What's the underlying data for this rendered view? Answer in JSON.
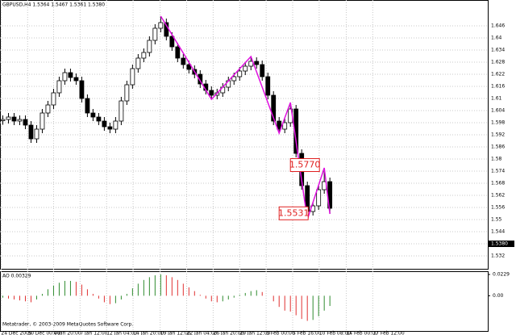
{
  "chart_data": [
    {
      "type": "candlestick",
      "title": "GBPUSD,H4 1.5364 1.5467 1.5361 1.5380",
      "up_color": "#ffffff",
      "down_color": "#000000",
      "wick_color": "#000000",
      "open": [
        1.599,
        1.5996,
        1.6008,
        1.5988,
        1.5996,
        1.5968,
        1.59,
        1.5948,
        1.6028,
        1.6068,
        1.6128,
        1.6188,
        1.6228,
        1.6204,
        1.6188,
        1.61,
        1.6028,
        1.6008,
        1.5988,
        1.596,
        1.5948,
        1.5988,
        1.6088,
        1.6168,
        1.6248,
        1.63,
        1.6328,
        1.6388,
        1.6448,
        1.6476,
        1.6408,
        1.6356,
        1.63,
        1.6268,
        1.6244,
        1.622,
        1.6172,
        1.614,
        1.6116,
        1.6128,
        1.6156,
        1.6188,
        1.6208,
        1.6236,
        1.626,
        1.6284,
        1.6268,
        1.6208,
        1.6116,
        1.5988,
        1.5948,
        1.598,
        1.6048,
        1.5828,
        1.5668,
        1.554,
        1.5568,
        1.5648,
        1.5688
      ],
      "high": [
        1.6016,
        1.6028,
        1.6028,
        1.6016,
        1.6016,
        1.5988,
        1.5968,
        1.6048,
        1.6088,
        1.6148,
        1.6208,
        1.6248,
        1.6248,
        1.6224,
        1.6208,
        1.612,
        1.6048,
        1.6028,
        1.6008,
        1.598,
        1.6008,
        1.6108,
        1.6188,
        1.6268,
        1.632,
        1.6348,
        1.6408,
        1.6468,
        1.6508,
        1.6496,
        1.6428,
        1.6376,
        1.632,
        1.6288,
        1.6264,
        1.624,
        1.6192,
        1.616,
        1.6148,
        1.6176,
        1.6208,
        1.6228,
        1.6256,
        1.628,
        1.6308,
        1.6304,
        1.6288,
        1.6228,
        1.6136,
        1.6008,
        1.6,
        1.608,
        1.6068,
        1.5848,
        1.5688,
        1.5588,
        1.5668,
        1.5756,
        1.5708
      ],
      "low": [
        1.597,
        1.5976,
        1.5968,
        1.5968,
        1.5948,
        1.588,
        1.588,
        1.5928,
        1.6008,
        1.6048,
        1.6108,
        1.6168,
        1.6184,
        1.6168,
        1.608,
        1.6008,
        1.5988,
        1.5968,
        1.594,
        1.5928,
        1.5928,
        1.5968,
        1.6068,
        1.6148,
        1.6228,
        1.628,
        1.6308,
        1.6368,
        1.6428,
        1.6388,
        1.6336,
        1.628,
        1.6248,
        1.6224,
        1.62,
        1.6152,
        1.612,
        1.6096,
        1.6096,
        1.6108,
        1.6136,
        1.6168,
        1.6188,
        1.6216,
        1.624,
        1.6248,
        1.6188,
        1.6096,
        1.5968,
        1.5928,
        1.5928,
        1.596,
        1.5808,
        1.5648,
        1.55,
        1.552,
        1.5548,
        1.5628,
        1.5528
      ],
      "close": [
        1.5996,
        1.6008,
        1.5988,
        1.5996,
        1.5968,
        1.59,
        1.5948,
        1.6028,
        1.6068,
        1.6128,
        1.6188,
        1.6228,
        1.6204,
        1.6188,
        1.61,
        1.6028,
        1.6008,
        1.5988,
        1.596,
        1.5948,
        1.5988,
        1.6088,
        1.6168,
        1.6248,
        1.63,
        1.6328,
        1.6388,
        1.6448,
        1.6476,
        1.6408,
        1.6356,
        1.63,
        1.6268,
        1.6244,
        1.622,
        1.6172,
        1.614,
        1.6116,
        1.6128,
        1.6156,
        1.6188,
        1.6208,
        1.6236,
        1.626,
        1.6284,
        1.6268,
        1.6208,
        1.6116,
        1.5988,
        1.5948,
        1.598,
        1.6048,
        1.5828,
        1.5668,
        1.554,
        1.5568,
        1.5648,
        1.5688,
        1.5556
      ],
      "zigzag": {
        "color": "#e010e0",
        "x": [
          28,
          37,
          44,
          49,
          51,
          54,
          57,
          58
        ],
        "values": [
          1.6508,
          1.6096,
          1.6308,
          1.5928,
          1.608,
          1.55,
          1.5756,
          1.5528
        ]
      },
      "annotations": [
        {
          "text": "1.5770",
          "value": 1.577,
          "x": 51
        },
        {
          "text": "1.5531",
          "value": 1.5531,
          "x": 49
        }
      ],
      "last_price": {
        "value": 1.538,
        "label": "1.5380"
      },
      "xlim": [
        -0.5,
        86
      ],
      "xticks": [
        {
          "value": -0.3,
          "label": "24 Dec 2009"
        },
        {
          "value": 4.4,
          "label": "30 Dec 00:00"
        },
        {
          "value": 9,
          "label": "4 Jan 20:00"
        },
        {
          "value": 13.7,
          "label": "7 Jan 12:00"
        },
        {
          "value": 18.4,
          "label": "12 Jan 04:00"
        },
        {
          "value": 23.1,
          "label": "14 Jan 20:00"
        },
        {
          "value": 27.9,
          "label": "19 Jan 12:00"
        },
        {
          "value": 32.6,
          "label": "22 Jan 04:00"
        },
        {
          "value": 37.3,
          "label": "26 Jan 20:00"
        },
        {
          "value": 42,
          "label": "29 Jan 12:00"
        },
        {
          "value": 46.7,
          "label": "3 Feb 00:00"
        },
        {
          "value": 51.4,
          "label": "5 Feb 16:00"
        },
        {
          "value": 56.1,
          "label": "10 Feb 08:00"
        },
        {
          "value": 60.9,
          "label": "14 Feb 00:00"
        },
        {
          "value": 65.6,
          "label": "17 Feb 12:00"
        }
      ],
      "ylim": [
        1.5256,
        1.6588
      ],
      "yticks": [
        1.646,
        1.64,
        1.634,
        1.628,
        1.622,
        1.616,
        1.61,
        1.604,
        1.598,
        1.592,
        1.586,
        1.58,
        1.574,
        1.568,
        1.562,
        1.556,
        1.55,
        1.544,
        1.538,
        1.532
      ],
      "grid": true
    },
    {
      "type": "ao",
      "title": "AO 0.00329",
      "up_color": "#2e8b2e",
      "down_color": "#e03030",
      "values": [
        -0.002,
        -0.003,
        -0.004,
        -0.005,
        -0.006,
        -0.007,
        -0.004,
        0.002,
        0.007,
        0.011,
        0.014,
        0.016,
        0.016,
        0.015,
        0.012,
        0.007,
        0.002,
        -0.003,
        -0.007,
        -0.009,
        -0.008,
        -0.004,
        0.002,
        0.008,
        0.013,
        0.017,
        0.02,
        0.022,
        0.023,
        0.022,
        0.02,
        0.017,
        0.013,
        0.009,
        0.005,
        0.001,
        -0.003,
        -0.006,
        -0.007,
        -0.006,
        -0.004,
        -0.002,
        0.001,
        0.003,
        0.005,
        0.006,
        0.004,
        0.0,
        -0.006,
        -0.012,
        -0.016,
        -0.017,
        -0.021,
        -0.025,
        -0.027,
        -0.026,
        -0.022,
        -0.016,
        -0.011
      ],
      "ylim": [
        -0.0379,
        0.0264
      ],
      "yticks": [
        0.0229,
        {
          "value": 0,
          "label": "0.00"
        }
      ]
    }
  ],
  "footer": "Metatrader, © 2003-2009 MetaQuotes Software Corp."
}
